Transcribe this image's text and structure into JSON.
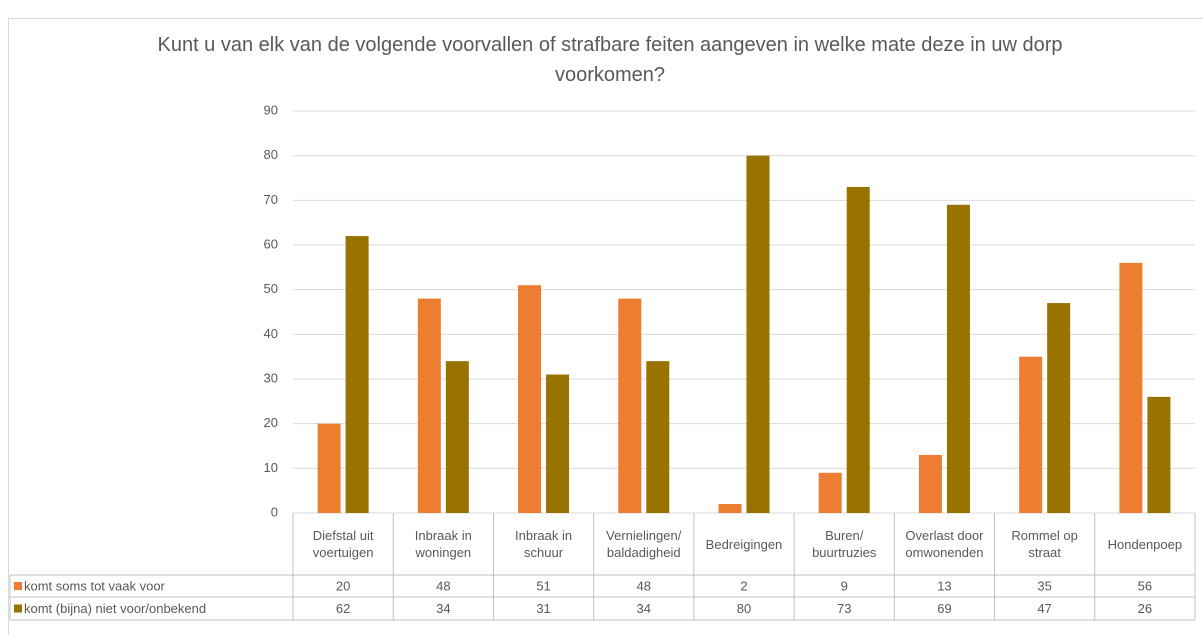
{
  "chart_data": {
    "type": "bar",
    "title": "Kunt u van elk van de volgende voorvallen of strafbare feiten aangeven in welke mate deze in uw dorp voorkomen?",
    "categories": [
      "Diefstal uit voertuigen",
      "Inbraak in woningen",
      "Inbraak in schuur",
      "Vernielingen/ baldadigheid",
      "Bedreigingen",
      "Buren/ buurtruzies",
      "Overlast door omwonenden",
      "Rommel op straat",
      "Hondenpoep"
    ],
    "series": [
      {
        "name": "komt soms tot vaak voor",
        "color": "#ed7d31",
        "values": [
          20,
          48,
          51,
          48,
          2,
          9,
          13,
          35,
          56
        ]
      },
      {
        "name": "komt (bijna) niet voor/onbekend",
        "color": "#997300",
        "values": [
          62,
          34,
          31,
          34,
          80,
          73,
          69,
          47,
          26
        ]
      }
    ],
    "ylim": [
      0,
      90
    ],
    "yticks": [
      0,
      10,
      20,
      30,
      40,
      50,
      60,
      70,
      80,
      90
    ],
    "grid": true,
    "data_table": true
  }
}
